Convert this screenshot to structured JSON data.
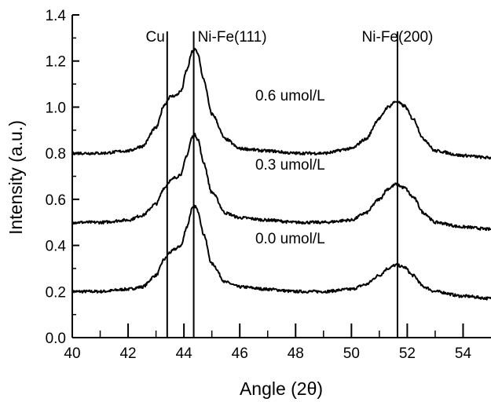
{
  "chart_data": {
    "type": "line",
    "xlabel": "Angle (2θ)",
    "ylabel": "Intensity (a.u.)",
    "xlim": [
      40,
      55
    ],
    "ylim": [
      0.0,
      1.4
    ],
    "x_ticks": [
      40,
      42,
      44,
      46,
      48,
      50,
      52,
      54
    ],
    "x_tick_labels": [
      "40",
      "42",
      "44",
      "46",
      "48",
      "50",
      "52",
      "54"
    ],
    "y_ticks": [
      0.0,
      0.2,
      0.4,
      0.6,
      0.8,
      1.0,
      1.2,
      1.4
    ],
    "y_tick_labels": [
      "0.0",
      "0.2",
      "0.4",
      "0.6",
      "0.8",
      "1.0",
      "1.2",
      "1.4"
    ],
    "grid": false,
    "line_color": "#000000",
    "reference_lines": [
      {
        "label": "Cu",
        "x": 43.4
      },
      {
        "label": "Ni-Fe(111)",
        "x": 44.35
      },
      {
        "label": "Ni-Fe(200)",
        "x": 51.65
      }
    ],
    "series": [
      {
        "name": "0.0 umol/L",
        "x": [
          40,
          41,
          42,
          42.5,
          43,
          43.3,
          43.5,
          43.7,
          43.9,
          44.1,
          44.3,
          44.4,
          44.5,
          44.7,
          45,
          45.5,
          46,
          47,
          48,
          49,
          50,
          50.5,
          51,
          51.3,
          51.6,
          51.9,
          52.2,
          52.6,
          53,
          54,
          55
        ],
        "values": [
          0.2,
          0.2,
          0.21,
          0.22,
          0.27,
          0.34,
          0.37,
          0.385,
          0.4,
          0.48,
          0.56,
          0.57,
          0.55,
          0.45,
          0.32,
          0.24,
          0.22,
          0.21,
          0.2,
          0.2,
          0.21,
          0.23,
          0.27,
          0.3,
          0.315,
          0.305,
          0.27,
          0.22,
          0.2,
          0.18,
          0.17
        ]
      },
      {
        "name": "0.3 umol/L",
        "x": [
          40,
          41,
          42,
          42.5,
          43,
          43.3,
          43.5,
          43.7,
          43.9,
          44.1,
          44.3,
          44.4,
          44.5,
          44.7,
          45,
          45.5,
          46,
          47,
          48,
          49,
          50,
          50.5,
          51,
          51.3,
          51.6,
          51.9,
          52.2,
          52.6,
          53,
          54,
          55
        ],
        "values": [
          0.5,
          0.5,
          0.51,
          0.53,
          0.58,
          0.65,
          0.68,
          0.695,
          0.71,
          0.79,
          0.87,
          0.88,
          0.86,
          0.76,
          0.63,
          0.54,
          0.52,
          0.51,
          0.5,
          0.5,
          0.51,
          0.54,
          0.6,
          0.645,
          0.665,
          0.65,
          0.61,
          0.54,
          0.5,
          0.48,
          0.47
        ]
      },
      {
        "name": "0.6 umol/L",
        "x": [
          40,
          41,
          42,
          42.5,
          43,
          43.3,
          43.5,
          43.7,
          43.9,
          44.1,
          44.3,
          44.4,
          44.5,
          44.7,
          45,
          45.5,
          46,
          47,
          48,
          49,
          50,
          50.5,
          51,
          51.3,
          51.6,
          51.9,
          52.2,
          52.6,
          53,
          54,
          55
        ],
        "values": [
          0.8,
          0.8,
          0.81,
          0.83,
          0.91,
          1.01,
          1.045,
          1.05,
          1.07,
          1.16,
          1.24,
          1.25,
          1.23,
          1.12,
          0.97,
          0.86,
          0.82,
          0.81,
          0.8,
          0.8,
          0.82,
          0.86,
          0.95,
          1.0,
          1.025,
          1.005,
          0.95,
          0.86,
          0.81,
          0.79,
          0.78
        ]
      }
    ],
    "series_labels": [
      {
        "text": "0.0 umol/L",
        "x": 46.5,
        "y": 0.43
      },
      {
        "text": "0.3 umol/L",
        "x": 46.5,
        "y": 0.75
      },
      {
        "text": "0.6 umol/L",
        "x": 46.5,
        "y": 1.05
      }
    ]
  }
}
